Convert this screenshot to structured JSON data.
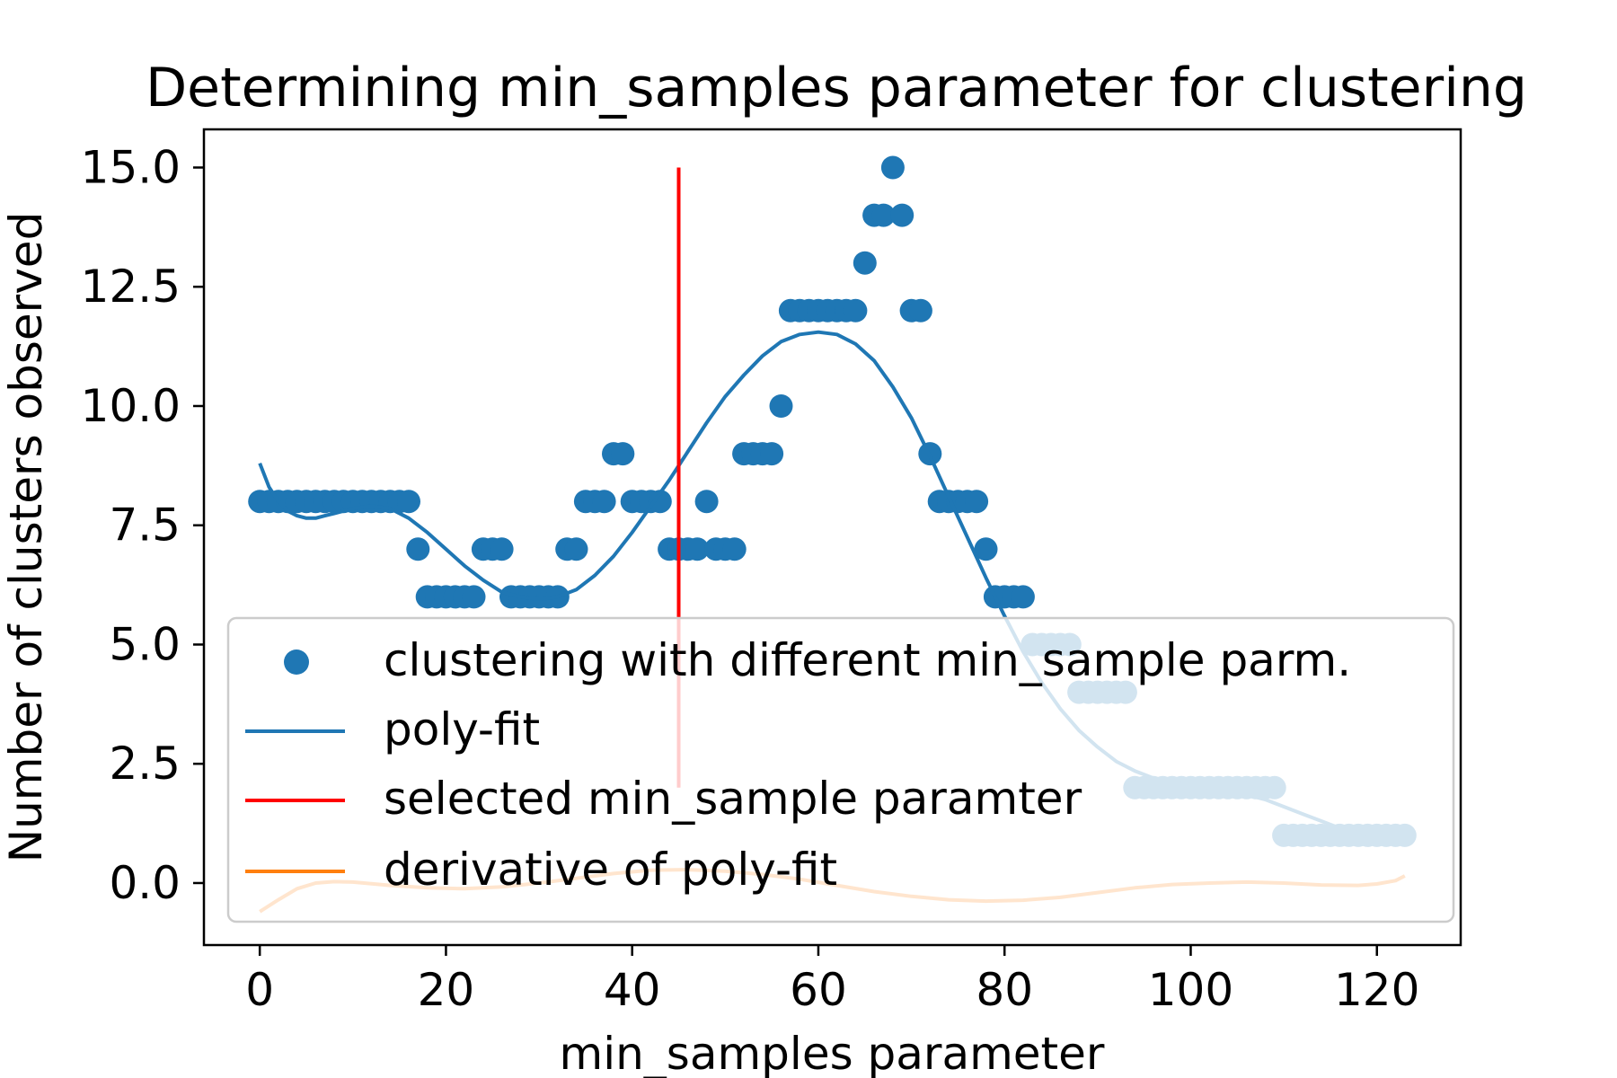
{
  "chart_data": {
    "type": "scatter",
    "title": "Determining min_samples parameter for clustering",
    "xlabel": "min_samples parameter",
    "ylabel": "Number of clusters observed",
    "xlim": [
      -6,
      129
    ],
    "ylim": [
      -1.3,
      15.8
    ],
    "xticks": [
      "0",
      "20",
      "40",
      "60",
      "80",
      "100",
      "120"
    ],
    "xtick_values": [
      0,
      20,
      40,
      60,
      80,
      100,
      120
    ],
    "yticks": [
      "0.0",
      "2.5",
      "5.0",
      "7.5",
      "10.0",
      "12.5",
      "15.0"
    ],
    "ytick_values": [
      0,
      2.5,
      5,
      7.5,
      10,
      12.5,
      15
    ],
    "grid": false,
    "legend_position": "lower-right",
    "colors": {
      "scatter": "#1f77b4",
      "polyfit": "#1f77b4",
      "selected": "#ff0000",
      "derivative": "#ff7f0e"
    },
    "series": [
      {
        "name": "clustering with different min_sample parm.",
        "kind": "scatter",
        "x": [
          0,
          1,
          2,
          3,
          4,
          5,
          6,
          7,
          8,
          9,
          10,
          11,
          12,
          13,
          14,
          15,
          16,
          17,
          18,
          19,
          20,
          21,
          22,
          23,
          24,
          25,
          26,
          27,
          28,
          29,
          30,
          31,
          32,
          33,
          34,
          35,
          36,
          37,
          38,
          39,
          40,
          41,
          42,
          43,
          44,
          45,
          46,
          47,
          48,
          49,
          50,
          51,
          52,
          53,
          54,
          55,
          56,
          57,
          58,
          59,
          60,
          61,
          62,
          63,
          64,
          65,
          66,
          67,
          68,
          69,
          70,
          71,
          72,
          73,
          74,
          75,
          76,
          77,
          78,
          79,
          80,
          81,
          82,
          83,
          84,
          85,
          86,
          87,
          88,
          89,
          90,
          91,
          92,
          93,
          94,
          95,
          96,
          97,
          98,
          99,
          100,
          101,
          102,
          103,
          104,
          105,
          106,
          107,
          108,
          109,
          110,
          111,
          112,
          113,
          114,
          115,
          116,
          117,
          118,
          119,
          120,
          121,
          122,
          123
        ],
        "y": [
          8,
          8,
          8,
          8,
          8,
          8,
          8,
          8,
          8,
          8,
          8,
          8,
          8,
          8,
          8,
          8,
          8,
          7,
          6,
          6,
          6,
          6,
          6,
          6,
          7,
          7,
          7,
          6,
          6,
          6,
          6,
          6,
          6,
          7,
          7,
          8,
          8,
          8,
          9,
          9,
          8,
          8,
          8,
          8,
          7,
          7,
          7,
          7,
          8,
          7,
          7,
          7,
          9,
          9,
          9,
          9,
          10,
          12,
          12,
          12,
          12,
          12,
          12,
          12,
          12,
          13,
          14,
          14,
          15,
          14,
          12,
          12,
          9,
          8,
          8,
          8,
          8,
          8,
          7,
          6,
          6,
          6,
          6,
          5,
          5,
          5,
          5,
          5,
          4,
          4,
          4,
          4,
          4,
          4,
          2,
          2,
          2,
          2,
          2,
          2,
          2,
          2,
          2,
          2,
          2,
          2,
          2,
          2,
          2,
          2,
          1,
          1,
          1,
          1,
          1,
          1,
          1,
          1,
          1,
          1,
          1,
          1,
          1,
          1
        ]
      },
      {
        "name": "poly-fit",
        "kind": "line",
        "x": [
          0,
          1,
          2,
          3,
          4,
          5,
          6,
          7,
          8,
          10,
          12,
          14,
          16,
          18,
          20,
          22,
          24,
          26,
          28,
          30,
          32,
          34,
          36,
          38,
          40,
          42,
          44,
          45,
          46,
          48,
          50,
          52,
          54,
          56,
          58,
          60,
          62,
          64,
          66,
          68,
          70,
          72,
          74,
          76,
          78,
          80,
          82,
          84,
          86,
          88,
          90,
          92,
          94,
          96,
          98,
          100,
          102,
          104,
          106,
          108,
          110,
          112,
          114,
          116,
          118,
          120,
          122,
          123
        ],
        "y": [
          8.8,
          8.3,
          8.0,
          7.8,
          7.7,
          7.65,
          7.65,
          7.7,
          7.75,
          7.85,
          7.9,
          7.85,
          7.65,
          7.35,
          7.0,
          6.65,
          6.35,
          6.1,
          6.0,
          5.95,
          6.0,
          6.15,
          6.45,
          6.85,
          7.35,
          7.9,
          8.45,
          8.75,
          9.05,
          9.65,
          10.2,
          10.65,
          11.05,
          11.35,
          11.5,
          11.55,
          11.5,
          11.3,
          10.95,
          10.4,
          9.75,
          8.95,
          8.1,
          7.25,
          6.4,
          5.6,
          4.85,
          4.2,
          3.65,
          3.2,
          2.85,
          2.55,
          2.35,
          2.2,
          2.1,
          2.05,
          2.0,
          1.95,
          1.85,
          1.75,
          1.6,
          1.45,
          1.3,
          1.15,
          1.05,
          1.0,
          1.0,
          1.0
        ]
      },
      {
        "name": "selected min_sample paramter",
        "kind": "vline",
        "x": 45,
        "y_range": [
          2.0,
          15.0
        ]
      },
      {
        "name": "derivative of poly-fit",
        "kind": "line",
        "x": [
          0,
          2,
          4,
          6,
          8,
          10,
          14,
          18,
          22,
          26,
          30,
          34,
          38,
          42,
          46,
          50,
          54,
          58,
          62,
          66,
          70,
          74,
          78,
          82,
          86,
          90,
          94,
          98,
          102,
          106,
          110,
          114,
          118,
          120,
          122,
          123
        ],
        "y": [
          -0.6,
          -0.35,
          -0.12,
          0.0,
          0.03,
          0.02,
          -0.05,
          -0.1,
          -0.12,
          -0.08,
          0.0,
          0.1,
          0.2,
          0.27,
          0.28,
          0.25,
          0.18,
          0.08,
          -0.05,
          -0.18,
          -0.28,
          -0.35,
          -0.38,
          -0.36,
          -0.3,
          -0.2,
          -0.1,
          -0.03,
          0.0,
          0.02,
          0.0,
          -0.04,
          -0.05,
          -0.02,
          0.05,
          0.15
        ]
      }
    ],
    "legend": [
      {
        "label": "clustering with different min_sample parm.",
        "symbol": "dot"
      },
      {
        "label": "poly-fit",
        "symbol": "line"
      },
      {
        "label": "selected min_sample paramter",
        "symbol": "line"
      },
      {
        "label": "derivative of poly-fit",
        "symbol": "line"
      }
    ]
  }
}
